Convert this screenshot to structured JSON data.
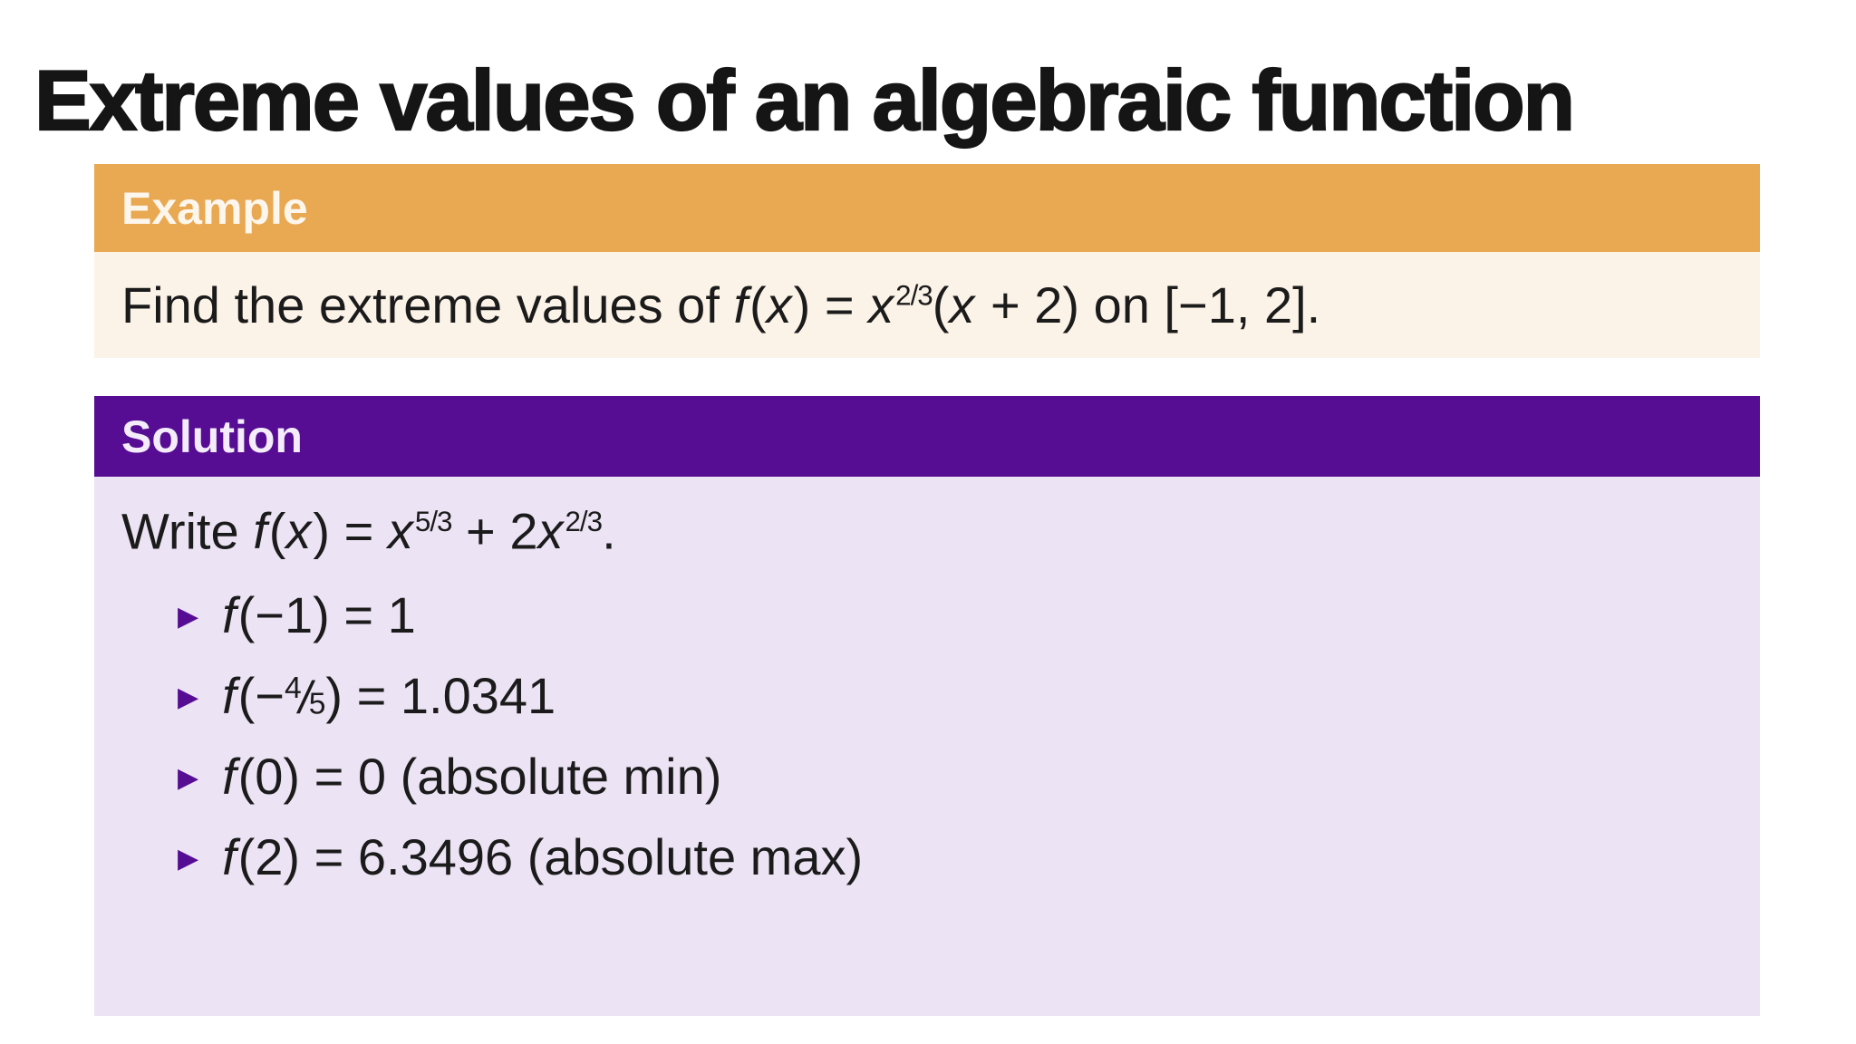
{
  "theme": {
    "page_bg": "#FFFFFF",
    "title_color": "#151515",
    "text_color": "#1B1B1B",
    "example_header_bg": "#E9A852",
    "example_header_text": "#FDF6EC",
    "example_body_bg": "#FCF3E8",
    "solution_header_bg": "#560D94",
    "solution_header_text": "#F4ECFA",
    "solution_body_bg": "#ECE3F4",
    "bullet_color": "#560D94"
  },
  "title": "Extreme values of an algebraic function",
  "example_box": {
    "header_label": "Example",
    "statement_math": [
      {
        "t": "text",
        "v": "Find the extreme values of "
      },
      {
        "t": "var",
        "v": "f"
      },
      {
        "t": "text",
        "v": "("
      },
      {
        "t": "var",
        "v": "x"
      },
      {
        "t": "text",
        "v": ") = "
      },
      {
        "t": "var",
        "v": "x"
      },
      {
        "t": "sup",
        "v": "2/3"
      },
      {
        "t": "text",
        "v": "("
      },
      {
        "t": "var",
        "v": "x"
      },
      {
        "t": "text",
        "v": " + 2) on [−1, 2]."
      }
    ]
  },
  "solution_box": {
    "header_label": "Solution",
    "intro_math": [
      {
        "t": "text",
        "v": "Write "
      },
      {
        "t": "var",
        "v": "f"
      },
      {
        "t": "text",
        "v": "("
      },
      {
        "t": "var",
        "v": "x"
      },
      {
        "t": "text",
        "v": ") = "
      },
      {
        "t": "var",
        "v": "x"
      },
      {
        "t": "sup",
        "v": "5/3"
      },
      {
        "t": "text",
        "v": " + 2"
      },
      {
        "t": "var",
        "v": "x"
      },
      {
        "t": "sup",
        "v": "2/3"
      },
      {
        "t": "text",
        "v": "."
      }
    ],
    "bullet_glyph": "▶",
    "bullets": [
      {
        "math": [
          {
            "t": "var",
            "v": "f"
          },
          {
            "t": "text",
            "v": "(−1) = 1"
          }
        ]
      },
      {
        "math": [
          {
            "t": "var",
            "v": "f"
          },
          {
            "t": "text",
            "v": "(−"
          },
          {
            "t": "frac",
            "n": "4",
            "d": "5"
          },
          {
            "t": "text",
            "v": ") = 1.0341"
          }
        ]
      },
      {
        "math": [
          {
            "t": "var",
            "v": "f"
          },
          {
            "t": "text",
            "v": "(0) = 0 (absolute min)"
          }
        ]
      },
      {
        "math": [
          {
            "t": "var",
            "v": "f"
          },
          {
            "t": "text",
            "v": "(2) = 6.3496 (absolute max)"
          }
        ]
      }
    ]
  }
}
